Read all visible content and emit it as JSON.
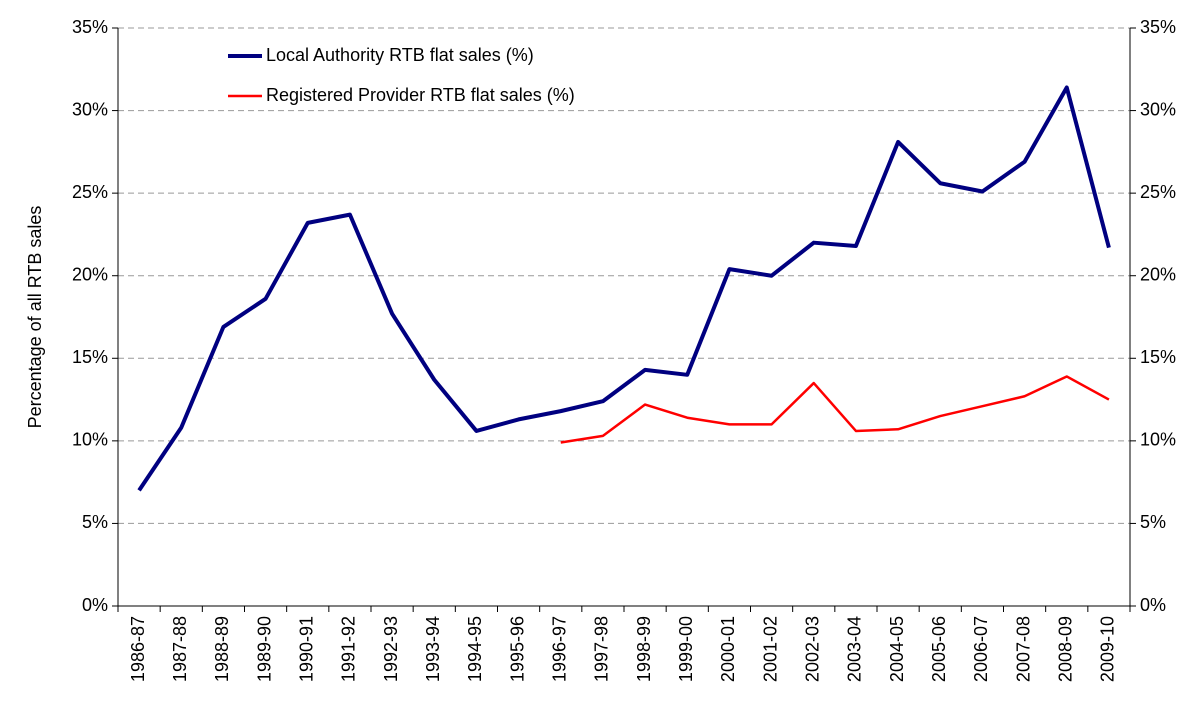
{
  "chart_data": {
    "type": "line",
    "y_label": "Percentage of all RTB sales",
    "categories": [
      "1986-87",
      "1987-88",
      "1988-89",
      "1989-90",
      "1990-91",
      "1991-92",
      "1992-93",
      "1993-94",
      "1994-95",
      "1995-96",
      "1996-97",
      "1997-98",
      "1998-99",
      "1999-00",
      "2000-01",
      "2001-02",
      "2002-03",
      "2003-04",
      "2004-05",
      "2005-06",
      "2006-07",
      "2007-08",
      "2008-09",
      "2009-10"
    ],
    "series": [
      {
        "name": "Local Authority RTB flat sales (%)",
        "color": "#000080",
        "values": [
          7.0,
          10.8,
          16.9,
          18.6,
          23.2,
          23.7,
          17.7,
          13.7,
          10.6,
          11.3,
          11.8,
          12.4,
          14.3,
          14.0,
          20.4,
          20.0,
          22.0,
          21.8,
          28.1,
          25.6,
          25.1,
          26.9,
          31.4,
          21.7
        ]
      },
      {
        "name": "Registered Provider RTB flat sales (%)",
        "color": "#ff0000",
        "values": [
          null,
          null,
          null,
          null,
          null,
          null,
          null,
          null,
          null,
          null,
          9.9,
          10.3,
          12.2,
          11.4,
          11.0,
          11.0,
          13.5,
          10.6,
          10.7,
          11.5,
          12.1,
          12.7,
          13.9,
          12.5
        ]
      }
    ],
    "ylim": [
      0,
      35
    ],
    "yticks": [
      {
        "value": 0,
        "label": "0%"
      },
      {
        "value": 5,
        "label": "5%"
      },
      {
        "value": 10,
        "label": "10%"
      },
      {
        "value": 15,
        "label": "15%"
      },
      {
        "value": 20,
        "label": "20%"
      },
      {
        "value": 25,
        "label": "25%"
      },
      {
        "value": 30,
        "label": "30%"
      },
      {
        "value": 35,
        "label": "35%"
      }
    ],
    "y2lim": [
      0,
      35
    ],
    "y2ticks": [
      {
        "value": 0,
        "label": "0%"
      },
      {
        "value": 5,
        "label": "5%"
      },
      {
        "value": 10,
        "label": "10%"
      },
      {
        "value": 15,
        "label": "15%"
      },
      {
        "value": 20,
        "label": "20%"
      },
      {
        "value": 25,
        "label": "25%"
      },
      {
        "value": 30,
        "label": "30%"
      },
      {
        "value": 35,
        "label": "35%"
      }
    ],
    "grid": true,
    "legend": "top-left"
  }
}
